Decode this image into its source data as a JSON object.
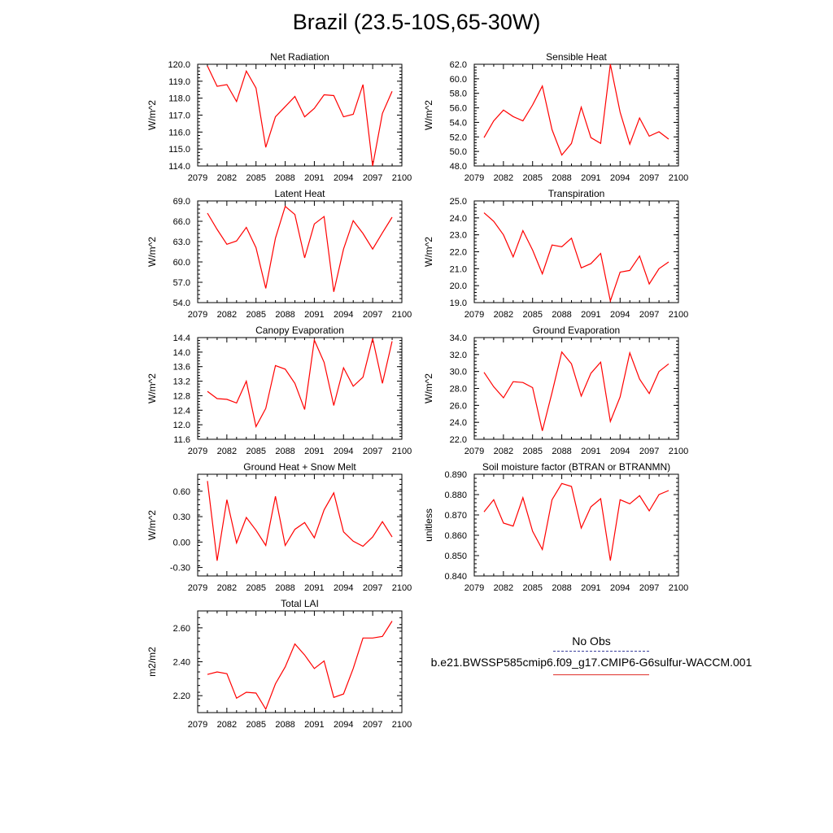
{
  "title": "Brazil (23.5-10S,65-30W)",
  "legend": {
    "obs_label": "No Obs",
    "model_label": "b.e21.BWSSP585cmip6.f09_g17.CMIP6-G6sulfur-WACCM.001",
    "obs_color": "#3a3f9c",
    "model_color": "#ff0000"
  },
  "chart_data": [
    {
      "type": "line",
      "title": "Net Radiation",
      "ylabel": "W/m^2",
      "xlim": [
        2079,
        2100
      ],
      "ylim": [
        114.0,
        120.0
      ],
      "xticks": [
        "2079",
        "2082",
        "2085",
        "2088",
        "2091",
        "2094",
        "2097",
        "2100"
      ],
      "yticks": [
        "114.0",
        "115.0",
        "116.0",
        "117.0",
        "118.0",
        "119.0",
        "120.0"
      ],
      "x": [
        2080,
        2081,
        2082,
        2083,
        2084,
        2085,
        2086,
        2087,
        2088,
        2089,
        2090,
        2091,
        2092,
        2093,
        2094,
        2095,
        2096,
        2097,
        2098,
        2099
      ],
      "values": [
        119.9,
        118.7,
        118.8,
        117.8,
        119.6,
        118.6,
        115.1,
        116.9,
        117.5,
        118.1,
        116.9,
        117.4,
        118.2,
        118.15,
        116.9,
        117.05,
        118.8,
        114.0,
        117.1,
        118.4
      ]
    },
    {
      "type": "line",
      "title": "Sensible Heat",
      "ylabel": "W/m^2",
      "xlim": [
        2079,
        2100
      ],
      "ylim": [
        48.0,
        62.0
      ],
      "xticks": [
        "2079",
        "2082",
        "2085",
        "2088",
        "2091",
        "2094",
        "2097",
        "2100"
      ],
      "yticks": [
        "48.0",
        "50.0",
        "52.0",
        "54.0",
        "56.0",
        "58.0",
        "60.0",
        "62.0"
      ],
      "x": [
        2080,
        2081,
        2082,
        2083,
        2084,
        2085,
        2086,
        2087,
        2088,
        2089,
        2090,
        2091,
        2092,
        2093,
        2094,
        2095,
        2096,
        2097,
        2098,
        2099
      ],
      "values": [
        51.9,
        54.2,
        55.7,
        54.8,
        54.2,
        56.4,
        59.0,
        53.0,
        49.5,
        51.1,
        56.1,
        51.9,
        51.1,
        62.0,
        55.4,
        51.0,
        54.6,
        52.1,
        52.7,
        51.7
      ]
    },
    {
      "type": "line",
      "title": "Latent Heat",
      "ylabel": "W/m^2",
      "xlim": [
        2079,
        2100
      ],
      "ylim": [
        54.0,
        69.0
      ],
      "xticks": [
        "2079",
        "2082",
        "2085",
        "2088",
        "2091",
        "2094",
        "2097",
        "2100"
      ],
      "yticks": [
        "54.0",
        "57.0",
        "60.0",
        "63.0",
        "66.0",
        "69.0"
      ],
      "x": [
        2080,
        2081,
        2082,
        2083,
        2084,
        2085,
        2086,
        2087,
        2088,
        2089,
        2090,
        2091,
        2092,
        2093,
        2094,
        2095,
        2096,
        2097,
        2098,
        2099
      ],
      "values": [
        67.2,
        64.8,
        62.6,
        63.1,
        65.1,
        62.1,
        56.1,
        63.5,
        68.2,
        67.0,
        60.6,
        65.6,
        66.7,
        55.6,
        61.9,
        66.1,
        64.2,
        61.9,
        64.3,
        66.6
      ]
    },
    {
      "type": "line",
      "title": "Transpiration",
      "ylabel": "W/m^2",
      "xlim": [
        2079,
        2100
      ],
      "ylim": [
        19.0,
        25.0
      ],
      "xticks": [
        "2079",
        "2082",
        "2085",
        "2088",
        "2091",
        "2094",
        "2097",
        "2100"
      ],
      "yticks": [
        "19.0",
        "20.0",
        "21.0",
        "22.0",
        "23.0",
        "24.0",
        "25.0"
      ],
      "x": [
        2080,
        2081,
        2082,
        2083,
        2084,
        2085,
        2086,
        2087,
        2088,
        2089,
        2090,
        2091,
        2092,
        2093,
        2094,
        2095,
        2096,
        2097,
        2098,
        2099
      ],
      "values": [
        24.3,
        23.8,
        23.0,
        21.7,
        23.25,
        22.1,
        20.7,
        22.4,
        22.3,
        22.8,
        21.05,
        21.3,
        21.9,
        19.1,
        20.8,
        20.9,
        21.75,
        20.1,
        21.0,
        21.4
      ]
    },
    {
      "type": "line",
      "title": "Canopy Evaporation",
      "ylabel": "W/m^2",
      "xlim": [
        2079,
        2100
      ],
      "ylim": [
        11.6,
        14.4
      ],
      "xticks": [
        "2079",
        "2082",
        "2085",
        "2088",
        "2091",
        "2094",
        "2097",
        "2100"
      ],
      "yticks": [
        "11.6",
        "12.0",
        "12.4",
        "12.8",
        "13.2",
        "13.6",
        "14.0",
        "14.4"
      ],
      "x": [
        2080,
        2081,
        2082,
        2083,
        2084,
        2085,
        2086,
        2087,
        2088,
        2089,
        2090,
        2091,
        2092,
        2093,
        2094,
        2095,
        2096,
        2097,
        2098,
        2099
      ],
      "values": [
        12.92,
        12.72,
        12.7,
        12.6,
        13.2,
        11.95,
        12.45,
        13.63,
        13.53,
        13.14,
        12.42,
        14.33,
        13.72,
        12.53,
        13.57,
        13.06,
        13.31,
        14.37,
        13.14,
        14.3
      ]
    },
    {
      "type": "line",
      "title": "Ground Evaporation",
      "ylabel": "W/m^2",
      "xlim": [
        2079,
        2100
      ],
      "ylim": [
        22.0,
        34.0
      ],
      "xticks": [
        "2079",
        "2082",
        "2085",
        "2088",
        "2091",
        "2094",
        "2097",
        "2100"
      ],
      "yticks": [
        "22.0",
        "24.0",
        "26.0",
        "28.0",
        "30.0",
        "32.0",
        "34.0"
      ],
      "x": [
        2080,
        2081,
        2082,
        2083,
        2084,
        2085,
        2086,
        2087,
        2088,
        2089,
        2090,
        2091,
        2092,
        2093,
        2094,
        2095,
        2096,
        2097,
        2098,
        2099
      ],
      "values": [
        29.9,
        28.2,
        26.9,
        28.8,
        28.7,
        28.1,
        23.0,
        27.5,
        32.3,
        30.9,
        27.1,
        29.8,
        31.1,
        24.1,
        27.0,
        32.2,
        29.1,
        27.4,
        30.0,
        30.9
      ]
    },
    {
      "type": "line",
      "title": "Ground Heat + Snow Melt",
      "ylabel": "W/m^2",
      "xlim": [
        2079,
        2100
      ],
      "ylim": [
        -0.4,
        0.8
      ],
      "xticks": [
        "2079",
        "2082",
        "2085",
        "2088",
        "2091",
        "2094",
        "2097",
        "2100"
      ],
      "ytick_values": [
        -0.3,
        0.0,
        0.3,
        0.6
      ],
      "yticks": [
        "-0.30",
        "0.00",
        "0.30",
        "0.60"
      ],
      "x": [
        2080,
        2081,
        2082,
        2083,
        2084,
        2085,
        2086,
        2087,
        2088,
        2089,
        2090,
        2091,
        2092,
        2093,
        2094,
        2095,
        2096,
        2097,
        2098,
        2099
      ],
      "values": [
        0.72,
        -0.22,
        0.5,
        -0.01,
        0.29,
        0.14,
        -0.04,
        0.54,
        -0.04,
        0.15,
        0.23,
        0.05,
        0.38,
        0.58,
        0.12,
        0.01,
        -0.05,
        0.06,
        0.24,
        0.06
      ]
    },
    {
      "type": "line",
      "title": "Soil moisture factor (BTRAN or BTRANMN)",
      "ylabel": "unitless",
      "xlim": [
        2079,
        2100
      ],
      "ylim": [
        0.84,
        0.89
      ],
      "xticks": [
        "2079",
        "2082",
        "2085",
        "2088",
        "2091",
        "2094",
        "2097",
        "2100"
      ],
      "yticks": [
        "0.840",
        "0.850",
        "0.860",
        "0.870",
        "0.880",
        "0.890"
      ],
      "x": [
        2080,
        2081,
        2082,
        2083,
        2084,
        2085,
        2086,
        2087,
        2088,
        2089,
        2090,
        2091,
        2092,
        2093,
        2094,
        2095,
        2096,
        2097,
        2098,
        2099
      ],
      "values": [
        0.8715,
        0.8775,
        0.866,
        0.8645,
        0.8785,
        0.862,
        0.853,
        0.8775,
        0.8855,
        0.884,
        0.8635,
        0.874,
        0.878,
        0.8475,
        0.8775,
        0.8755,
        0.8795,
        0.872,
        0.88,
        0.882
      ]
    },
    {
      "type": "line",
      "title": "Total LAI",
      "ylabel": "m2/m2",
      "xlim": [
        2079,
        2100
      ],
      "ylim": [
        2.1,
        2.7
      ],
      "xticks": [
        "2079",
        "2082",
        "2085",
        "2088",
        "2091",
        "2094",
        "2097",
        "2100"
      ],
      "ytick_values": [
        2.2,
        2.4,
        2.6
      ],
      "yticks": [
        "2.20",
        "2.40",
        "2.60"
      ],
      "x": [
        2080,
        2081,
        2082,
        2083,
        2084,
        2085,
        2086,
        2087,
        2088,
        2089,
        2090,
        2091,
        2092,
        2093,
        2094,
        2095,
        2096,
        2097,
        2098,
        2099
      ],
      "values": [
        2.325,
        2.34,
        2.33,
        2.185,
        2.22,
        2.215,
        2.12,
        2.27,
        2.37,
        2.505,
        2.44,
        2.36,
        2.405,
        2.19,
        2.21,
        2.36,
        2.54,
        2.54,
        2.55,
        2.64
      ]
    }
  ]
}
